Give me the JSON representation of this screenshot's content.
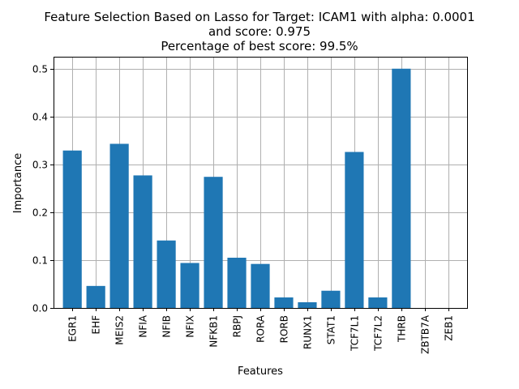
{
  "chart_data": {
    "type": "bar",
    "title_lines": [
      "Feature Selection Based on Lasso for Target: ICAM1 with alpha: 0.0001",
      "and score: 0.975",
      "Percentage of best score: 99.5%"
    ],
    "xlabel": "Features",
    "ylabel": "Importance",
    "categories": [
      "EGR1",
      "EHF",
      "MEIS2",
      "NFIA",
      "NFIB",
      "NFIX",
      "NFKB1",
      "RBPJ",
      "RORA",
      "RORB",
      "RUNX1",
      "STAT1",
      "TCF7L1",
      "TCF7L2",
      "THRB",
      "ZBTB7A",
      "ZEB1"
    ],
    "values": [
      0.329,
      0.046,
      0.343,
      0.277,
      0.141,
      0.094,
      0.274,
      0.105,
      0.092,
      0.022,
      0.012,
      0.036,
      0.326,
      0.022,
      0.5,
      0.0,
      0.0
    ],
    "yticks": [
      "0.0",
      "0.1",
      "0.2",
      "0.3",
      "0.4",
      "0.5"
    ],
    "ylim": [
      0,
      0.525
    ],
    "grid": true,
    "bar_color": "#1f77b4"
  }
}
